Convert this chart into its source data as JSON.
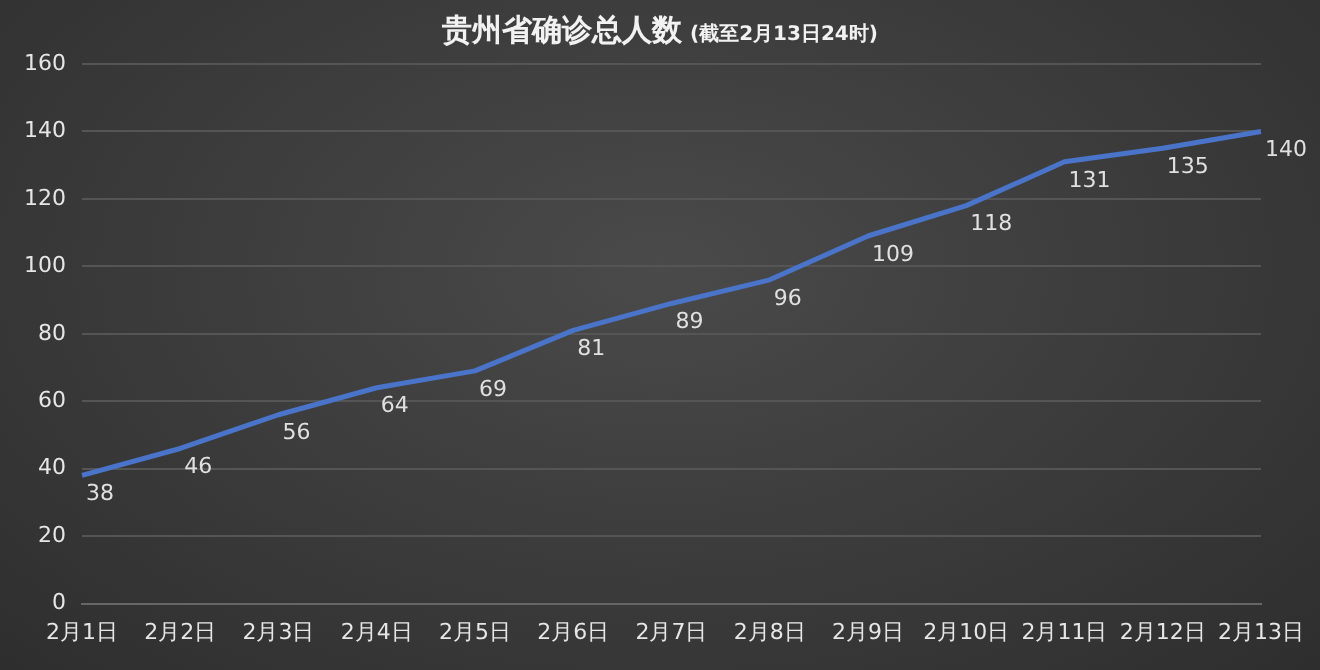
{
  "chart_data": {
    "type": "line",
    "title": "贵州省确诊总人数",
    "subtitle": "(截至2月13日24时)",
    "categories": [
      "2月1日",
      "2月2日",
      "2月3日",
      "2月4日",
      "2月5日",
      "2月6日",
      "2月7日",
      "2月8日",
      "2月9日",
      "2月10日",
      "2月11日",
      "2月12日",
      "2月13日"
    ],
    "values": [
      38,
      46,
      56,
      64,
      69,
      81,
      89,
      96,
      109,
      118,
      131,
      135,
      140
    ],
    "color": "#4a74c9",
    "ylim": [
      0,
      160
    ],
    "yticks": [
      0,
      20,
      40,
      60,
      80,
      100,
      120,
      140,
      160
    ],
    "grid": "y",
    "data_labels": true,
    "marker": "none",
    "line_style": "solid",
    "legend": false
  }
}
